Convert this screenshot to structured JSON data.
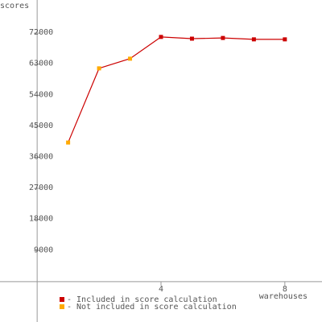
{
  "chart_data": {
    "type": "line",
    "y_label": "scores",
    "x_label": "warehouses",
    "x": [
      1,
      2,
      3,
      4,
      5,
      6,
      7,
      8
    ],
    "line_color": "#cc0000",
    "series": [
      {
        "name": "- Included in score calculation",
        "color": "#cc0000",
        "values": [
          null,
          null,
          null,
          70900,
          70400,
          70600,
          70200,
          70200
        ]
      },
      {
        "name": "- Not included in score calculation",
        "color": "#ffaa00",
        "values": [
          40300,
          61800,
          64600,
          null,
          null,
          null,
          null,
          null
        ]
      }
    ],
    "xlim": [
      -1.2,
      9.2
    ],
    "xticks": [
      4,
      8
    ],
    "ylim": [
      -11700,
      81600
    ],
    "yticks": [
      9000,
      18000,
      27000,
      36000,
      45000,
      54000,
      63000,
      72000
    ],
    "grid": false
  }
}
